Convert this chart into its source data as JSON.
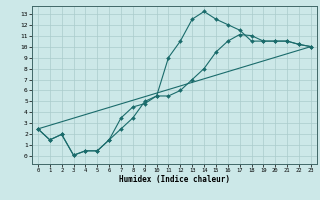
{
  "xlabel": "Humidex (Indice chaleur)",
  "bg_color": "#cce8e8",
  "grid_color": "#aacccc",
  "line_color": "#1a6b6b",
  "xlim": [
    -0.5,
    23.5
  ],
  "ylim": [
    -0.7,
    13.7
  ],
  "xticks": [
    0,
    1,
    2,
    3,
    4,
    5,
    6,
    7,
    8,
    9,
    10,
    11,
    12,
    13,
    14,
    15,
    16,
    17,
    18,
    19,
    20,
    21,
    22,
    23
  ],
  "yticks": [
    0,
    1,
    2,
    3,
    4,
    5,
    6,
    7,
    8,
    9,
    10,
    11,
    12,
    13
  ],
  "curve1_x": [
    0,
    1,
    2,
    3,
    4,
    5,
    6,
    7,
    8,
    9,
    10,
    11,
    12,
    13,
    14,
    15,
    16,
    17,
    18,
    19,
    20,
    21,
    22,
    23
  ],
  "curve1_y": [
    2.5,
    1.5,
    2.0,
    0.1,
    0.5,
    0.5,
    1.5,
    3.5,
    4.5,
    4.8,
    5.5,
    9.0,
    10.5,
    12.5,
    13.2,
    12.5,
    12.0,
    11.5,
    10.5,
    10.5,
    10.5,
    10.5,
    10.2,
    10.0
  ],
  "curve2_x": [
    0,
    1,
    2,
    3,
    4,
    5,
    6,
    7,
    8,
    9,
    10,
    11,
    12,
    13,
    14,
    15,
    16,
    17,
    18,
    19,
    20,
    21,
    22,
    23
  ],
  "curve2_y": [
    2.5,
    1.5,
    2.0,
    0.1,
    0.5,
    0.5,
    1.5,
    2.5,
    3.5,
    5.0,
    5.5,
    5.5,
    6.0,
    7.0,
    8.0,
    9.5,
    10.5,
    11.1,
    11.0,
    10.5,
    10.5,
    10.5,
    10.2,
    10.0
  ],
  "line3_x": [
    0,
    23
  ],
  "line3_y": [
    2.5,
    10.0
  ]
}
